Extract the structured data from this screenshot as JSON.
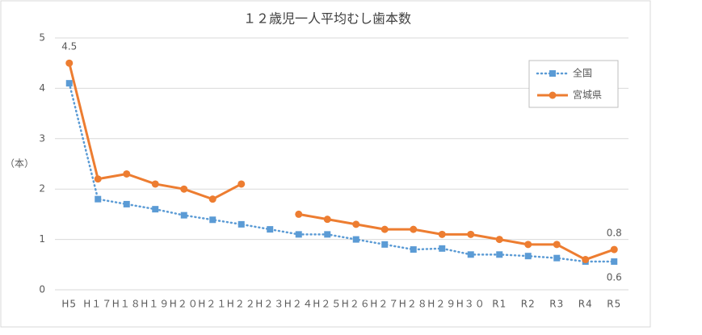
{
  "chart_data": {
    "type": "line",
    "title": "１２歳児一人平均むし歯本数",
    "y_label": "（本）",
    "categories": [
      "H5",
      "H１７",
      "H１８",
      "H１９",
      "H２０",
      "H２１",
      "H２２",
      "H２３",
      "H２４",
      "H２５",
      "H２６",
      "H２７",
      "H２８",
      "H２９",
      "H３０",
      "R1",
      "R2",
      "R3",
      "R4",
      "R5"
    ],
    "series": [
      {
        "name": "全国",
        "color": "#5b9bd5",
        "dash": true,
        "marker": "square",
        "values": [
          4.1,
          1.8,
          1.7,
          1.6,
          1.48,
          1.39,
          1.3,
          1.2,
          1.1,
          1.1,
          1.0,
          0.9,
          0.8,
          0.82,
          0.7,
          0.7,
          0.67,
          0.63,
          0.56,
          0.56
        ],
        "value_labels": [
          null,
          null,
          null,
          null,
          null,
          null,
          null,
          null,
          null,
          null,
          null,
          null,
          null,
          null,
          null,
          null,
          null,
          null,
          null,
          "0.6"
        ]
      },
      {
        "name": "宮城県",
        "color": "#ed7d31",
        "dash": false,
        "marker": "circle",
        "values": [
          4.5,
          2.2,
          2.3,
          2.1,
          2.0,
          1.8,
          2.1,
          null,
          1.5,
          1.4,
          1.3,
          1.2,
          1.2,
          1.1,
          1.1,
          1.0,
          0.9,
          0.9,
          0.6,
          0.8
        ],
        "value_labels": [
          "4.5",
          null,
          null,
          null,
          null,
          null,
          null,
          null,
          null,
          null,
          null,
          null,
          null,
          null,
          null,
          null,
          null,
          null,
          null,
          "0.8"
        ]
      }
    ],
    "ylim": [
      0,
      5
    ],
    "yticks": [
      0,
      1,
      2,
      3,
      4,
      5
    ],
    "grid": true,
    "legend": "top-right"
  }
}
